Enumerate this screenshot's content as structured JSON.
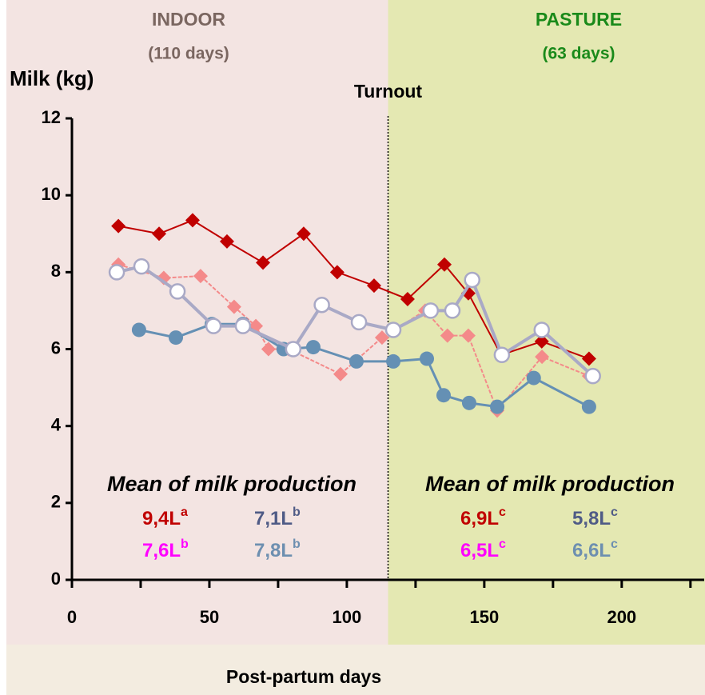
{
  "chart_data": {
    "type": "line",
    "regions": [
      {
        "title": "INDOOR",
        "subtitle": "(110 days)",
        "color": "#f3e4e2",
        "text_color": "#7a6660"
      },
      {
        "title": "PASTURE",
        "subtitle": "(63 days)",
        "color": "#e4e8b2",
        "text_color": "#1a8a1a"
      }
    ],
    "turnout": 115,
    "turnout_label": "Turnout",
    "y_label": "Milk (kg)",
    "x_label": "Post-partum days",
    "xlim": [
      0,
      230
    ],
    "xticks": [
      0,
      50,
      100,
      150,
      200
    ],
    "xminor": [
      25,
      75,
      125,
      175,
      225
    ],
    "ylim": [
      0,
      12
    ],
    "yticks": [
      0,
      2,
      4,
      6,
      8,
      10,
      12
    ],
    "series": [
      {
        "color": "#c00000",
        "marker": "diamond",
        "marker_fill": "#c00000",
        "width": 2,
        "x": [
          16.9,
          31.7,
          43.9,
          56.4,
          69.5,
          84.3,
          96.5,
          109.9,
          122.1,
          135.5,
          144.2,
          156.1,
          170.9,
          188.1
        ],
        "values": [
          9.2,
          9.0,
          9.35,
          8.8,
          8.25,
          9.0,
          8.0,
          7.65,
          7.3,
          8.2,
          7.45,
          5.85,
          6.2,
          5.75
        ]
      },
      {
        "color": "#f48a8a",
        "marker": "diamond",
        "marker_fill": "#f48a8a",
        "width": 2,
        "dash": true,
        "x": [
          16.9,
          33.4,
          46.8,
          59.0,
          66.9,
          71.5,
          78.8,
          97.7,
          112.8,
          128.5,
          136.6,
          144.2,
          154.7,
          171.0,
          188.1
        ],
        "values": [
          8.2,
          7.85,
          7.9,
          7.1,
          6.6,
          6.0,
          6.0,
          5.35,
          6.3,
          7.0,
          6.35,
          6.35,
          4.4,
          5.8,
          5.3
        ]
      },
      {
        "color": "#6590b4",
        "marker": "circle",
        "marker_fill": "#6590b4",
        "width": 3,
        "x": [
          24.4,
          37.8,
          50.9,
          62.2,
          77.0,
          87.8,
          103.5,
          116.9,
          129.1,
          135.2,
          144.5,
          154.7,
          168.0,
          188.1
        ],
        "values": [
          6.5,
          6.3,
          6.65,
          6.65,
          6.0,
          6.05,
          5.68,
          5.68,
          5.75,
          4.8,
          4.6,
          4.5,
          5.25,
          4.5
        ]
      },
      {
        "color": "#a9a9c6",
        "marker": "circle",
        "marker_fill": "#ffffff",
        "width": 4,
        "x": [
          16.3,
          25.3,
          38.4,
          51.5,
          62.2,
          80.5,
          90.9,
          104.4,
          116.9,
          130.5,
          138.4,
          145.6,
          156.4,
          170.9,
          189.5
        ],
        "values": [
          8.0,
          8.15,
          7.5,
          6.6,
          6.6,
          6.0,
          7.15,
          6.7,
          6.5,
          7.0,
          7.0,
          7.8,
          5.85,
          6.5,
          5.3
        ]
      }
    ],
    "means": [
      {
        "heading": "Mean of milk production",
        "items": [
          {
            "text": "9,4L",
            "sup": "a",
            "color": "#c00000"
          },
          {
            "text": "7,1L",
            "sup": "b",
            "color": "#4f5b86"
          },
          {
            "text": "7,6L",
            "sup": "b",
            "color": "#ff00ff"
          },
          {
            "text": "7,8L",
            "sup": "b",
            "color": "#6d8fb0"
          }
        ]
      },
      {
        "heading": "Mean of milk production",
        "items": [
          {
            "text": "6,9L",
            "sup": "c",
            "color": "#c00000"
          },
          {
            "text": "5,8L",
            "sup": "c",
            "color": "#4f5b86"
          },
          {
            "text": "6,5L",
            "sup": "c",
            "color": "#ff00ff"
          },
          {
            "text": "6,6L",
            "sup": "c",
            "color": "#6d8fb0"
          }
        ]
      }
    ]
  }
}
